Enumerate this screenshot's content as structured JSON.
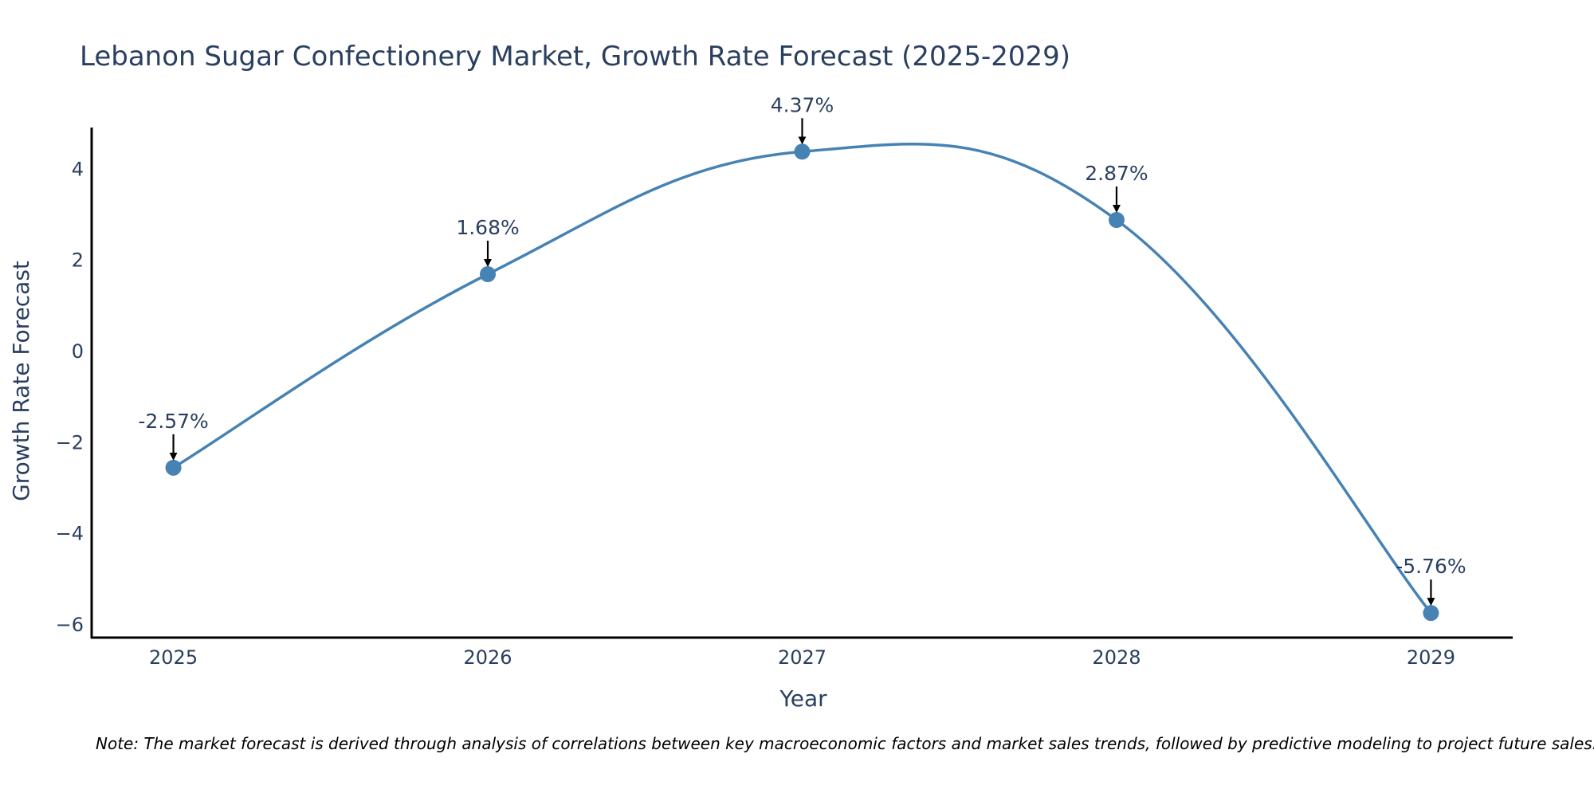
{
  "chart_data": {
    "type": "line",
    "title": "Lebanon Sugar Confectionery Market, Growth Rate Forecast (2025-2029)",
    "xlabel": "Year",
    "ylabel": "Growth Rate Forecast",
    "categories": [
      "2025",
      "2026",
      "2027",
      "2028",
      "2029"
    ],
    "series": [
      {
        "values": [
          -2.57,
          1.68,
          4.37,
          2.87,
          -5.76
        ],
        "labels": [
          "-2.57%",
          "1.68%",
          "4.37%",
          "2.87%",
          "-5.76%"
        ]
      }
    ],
    "yticks": [
      4,
      2,
      0,
      -2,
      -4,
      -6
    ],
    "ytick_labels": [
      "4",
      "2",
      "0",
      "−2",
      "−4",
      "−6"
    ],
    "ylim": [
      -6.3,
      4.9
    ],
    "xlim": [
      2024.74,
      2029.26
    ],
    "grid": false,
    "line_shape": "spline",
    "line_color": "#4682b4",
    "marker_color": "#4682b4",
    "arrow_color": "#000000",
    "note": "Note: The market forecast is derived through analysis of correlations between key macroeconomic factors and market sales trends, followed by predictive modeling to project future sales."
  }
}
